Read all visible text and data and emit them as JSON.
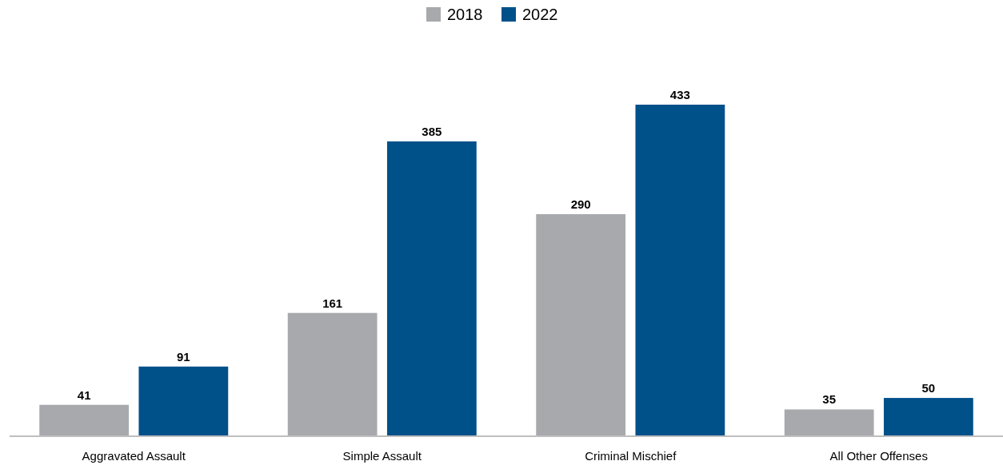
{
  "chart_data": {
    "type": "bar",
    "categories": [
      "Aggravated Assault",
      "Simple Assault",
      "Criminal Mischief",
      "All Other Offenses"
    ],
    "series": [
      {
        "name": "2018",
        "color": "#a7a9ac",
        "values": [
          41,
          161,
          290,
          35
        ]
      },
      {
        "name": "2022",
        "color": "#00508a",
        "values": [
          91,
          385,
          433,
          50
        ]
      }
    ],
    "data_labels": true,
    "legend": "top"
  }
}
